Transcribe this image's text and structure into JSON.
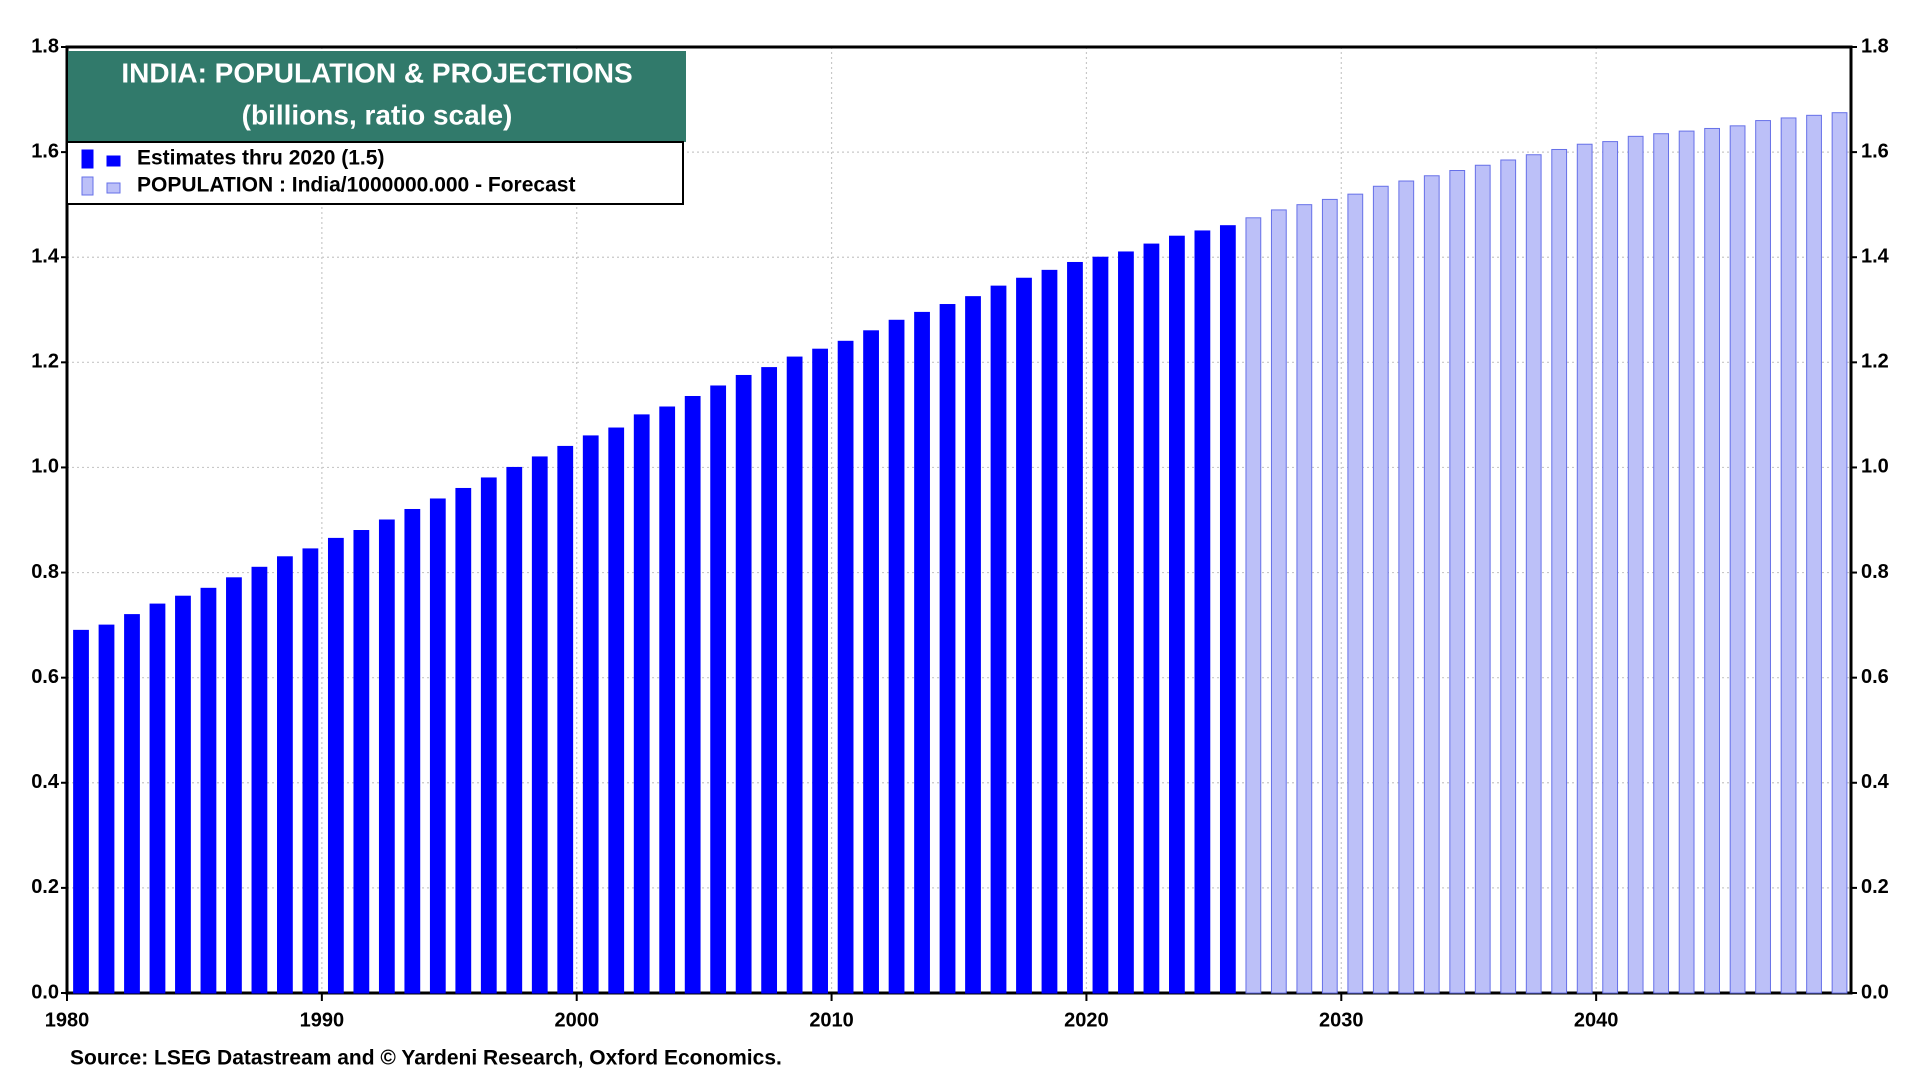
{
  "chart_data": {
    "type": "bar",
    "title": "INDIA: POPULATION & PROJECTIONS",
    "subtitle": "(billions, ratio scale)",
    "source": "Source: LSEG Datastream and © Yardeni Research, Oxford Economics.",
    "x": [
      1980,
      1981,
      1982,
      1983,
      1984,
      1985,
      1986,
      1987,
      1988,
      1989,
      1990,
      1991,
      1992,
      1993,
      1994,
      1995,
      1996,
      1997,
      1998,
      1999,
      2000,
      2001,
      2002,
      2003,
      2004,
      2005,
      2006,
      2007,
      2008,
      2009,
      2010,
      2011,
      2012,
      2013,
      2014,
      2015,
      2016,
      2017,
      2018,
      2019,
      2020,
      2021,
      2022,
      2023,
      2024,
      2025,
      2026,
      2027,
      2028,
      2029,
      2030,
      2031,
      2032,
      2033,
      2034,
      2035,
      2036,
      2037,
      2038,
      2039,
      2040,
      2041,
      2042,
      2043,
      2044,
      2045,
      2046,
      2047,
      2048,
      2049
    ],
    "series": [
      {
        "name": "Estimates thru 2020 (1.5)",
        "color": "#0000ff",
        "edge": "#0000ff",
        "values": [
          0.69,
          0.7,
          0.72,
          0.74,
          0.755,
          0.77,
          0.79,
          0.81,
          0.83,
          0.845,
          0.865,
          0.88,
          0.9,
          0.92,
          0.94,
          0.96,
          0.98,
          1.0,
          1.02,
          1.04,
          1.06,
          1.075,
          1.1,
          1.115,
          1.135,
          1.155,
          1.175,
          1.19,
          1.21,
          1.225,
          1.24,
          1.26,
          1.28,
          1.295,
          1.31,
          1.325,
          1.345,
          1.36,
          1.375,
          1.39,
          1.4,
          1.41,
          1.425,
          1.44,
          1.45,
          1.46,
          null,
          null,
          null,
          null,
          null,
          null,
          null,
          null,
          null,
          null,
          null,
          null,
          null,
          null,
          null,
          null,
          null,
          null,
          null,
          null,
          null,
          null,
          null,
          null
        ]
      },
      {
        "name": "POPULATION : India/1000000.000 - Forecast",
        "color": "#bcc0f8",
        "edge": "#6670e8",
        "values": [
          null,
          null,
          null,
          null,
          null,
          null,
          null,
          null,
          null,
          null,
          null,
          null,
          null,
          null,
          null,
          null,
          null,
          null,
          null,
          null,
          null,
          null,
          null,
          null,
          null,
          null,
          null,
          null,
          null,
          null,
          null,
          null,
          null,
          null,
          null,
          null,
          null,
          null,
          null,
          null,
          null,
          null,
          null,
          null,
          null,
          null,
          1.475,
          1.49,
          1.5,
          1.51,
          1.52,
          1.535,
          1.545,
          1.555,
          1.565,
          1.575,
          1.585,
          1.595,
          1.605,
          1.615,
          1.62,
          1.63,
          1.635,
          1.64,
          1.645,
          1.65,
          1.66,
          1.665,
          1.67,
          1.675
        ]
      }
    ],
    "xlim": [
      1980,
      2050
    ],
    "xticks": [
      1980,
      1990,
      2000,
      2010,
      2020,
      2030,
      2040
    ],
    "ylim": [
      0,
      1.8
    ],
    "yticks": [
      {
        "value": 0,
        "label": "0.0"
      },
      0.2,
      0.4,
      0.6,
      0.8,
      {
        "value": 1,
        "label": "1.0"
      },
      1.2,
      1.4,
      1.6,
      1.8
    ],
    "y2lim": [
      0,
      1.8
    ],
    "y2ticks": [
      {
        "value": 0,
        "label": "0.0"
      },
      0.2,
      0.4,
      0.6,
      0.8,
      {
        "value": 1,
        "label": "1.0"
      },
      1.2,
      1.4,
      1.6,
      1.8
    ],
    "grid": true
  }
}
